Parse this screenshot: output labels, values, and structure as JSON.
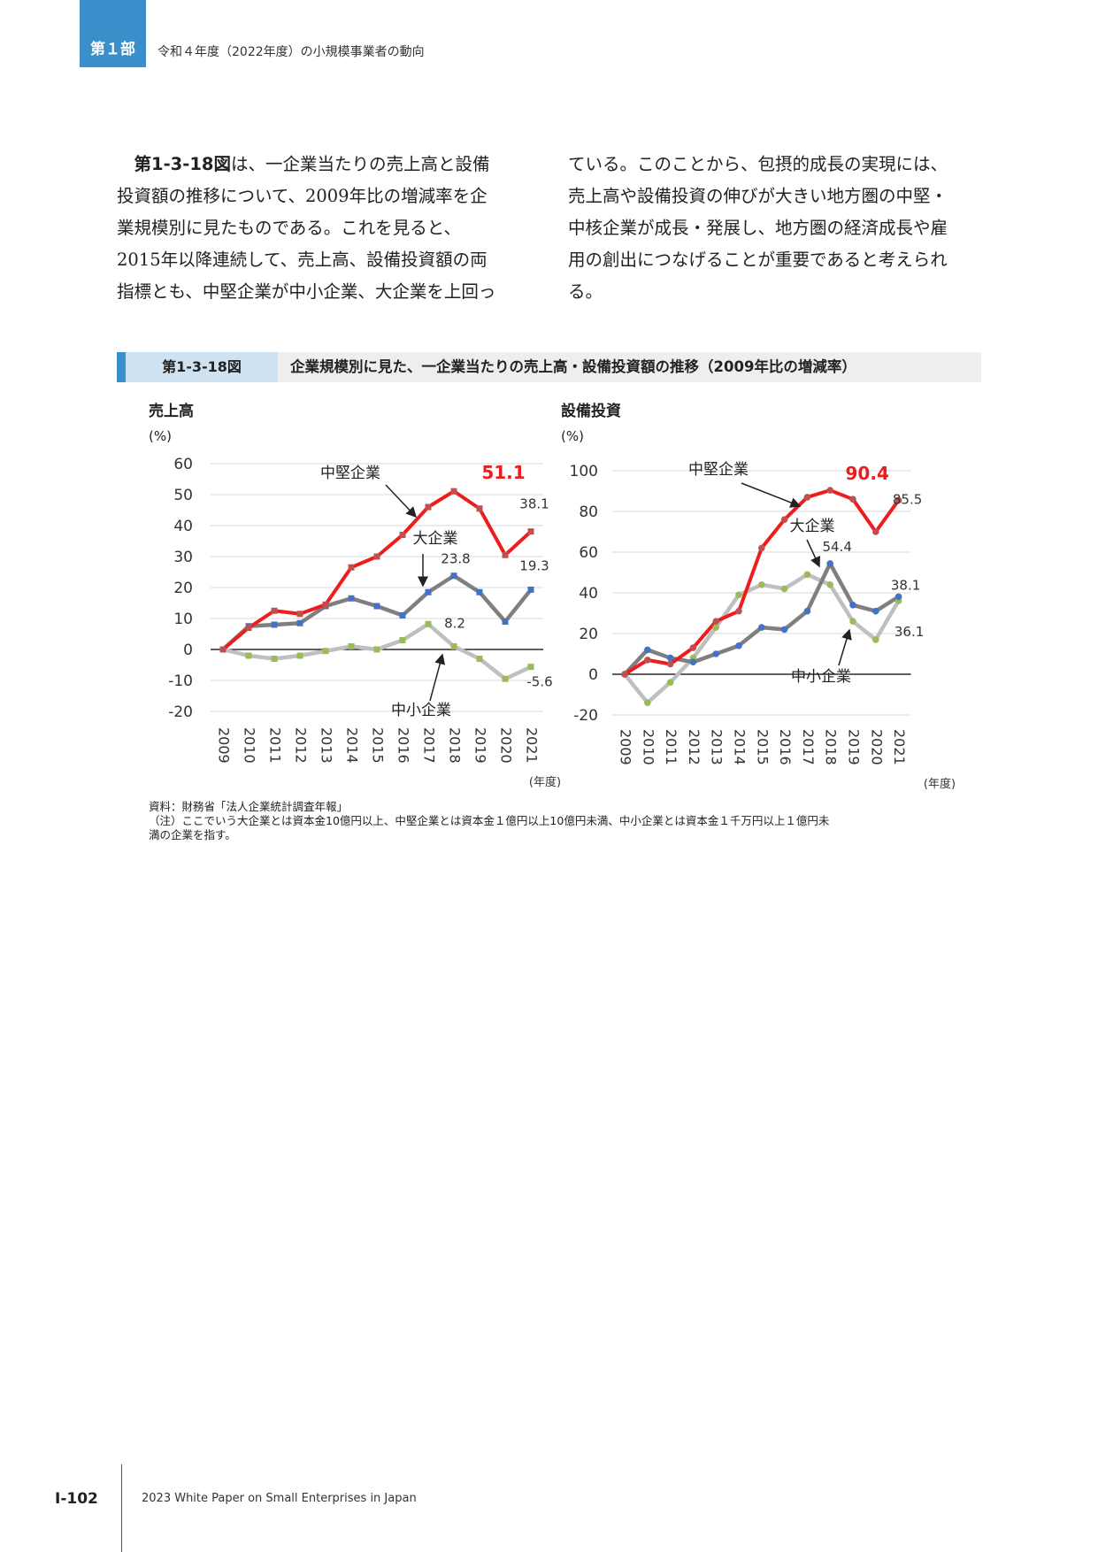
{
  "header": {
    "part_badge": "第１部",
    "title": "令和４年度（2022年度）の小規模事業者の動向"
  },
  "body": {
    "col1_lead": "第1-3-18図",
    "col1_lines": [
      "は、一企業当たりの売上高と設備",
      "投資額の推移について、2009年比の増減率を企",
      "業規模別に見たものである。これを見ると、",
      "2015年以降連続して、売上高、設備投資額の両",
      "指標とも、中堅企業が中小企業、大企業を上回っ"
    ],
    "col2_lines": [
      "ている。このことから、包摂的成長の実現には、",
      "売上高や設備投資の伸びが大きい地方圏の中堅・",
      "中核企業が成長・発展し、地方圏の経済成長や雇",
      "用の創出につなげることが重要であると考えられ",
      "る。"
    ]
  },
  "figure": {
    "number": "第1-3-18図",
    "title": "企業規模別に見た、一企業当たりの売上高・設備投資額の推移（2009年比の増減率）"
  },
  "chart_data": [
    {
      "type": "line",
      "title": "売上高",
      "ylabel": "(%)",
      "xlabel": "(年度)",
      "ylim": [
        -20,
        60
      ],
      "yticks": [
        -20,
        -10,
        0,
        10,
        20,
        30,
        40,
        50,
        60
      ],
      "x": [
        "2009",
        "2010",
        "2011",
        "2012",
        "2013",
        "2014",
        "2015",
        "2016",
        "2017",
        "2018",
        "2019",
        "2020",
        "2021"
      ],
      "series": [
        {
          "name": "中堅企業",
          "color": "#ee1c1c",
          "marker": "#c0504d",
          "values": [
            0,
            7,
            12.5,
            11.5,
            14.5,
            26.5,
            30,
            37,
            46,
            51.1,
            45.5,
            30.5,
            38.1
          ]
        },
        {
          "name": "大企業",
          "color": "#7f7f7f",
          "marker": "#4472c4",
          "values": [
            0,
            7.5,
            8,
            8.5,
            14,
            16.5,
            14,
            11,
            18.5,
            23.8,
            18.5,
            9,
            19.3
          ]
        },
        {
          "name": "中小企業",
          "color": "#bfbfbf",
          "marker": "#9bbb59",
          "values": [
            0,
            -2,
            -3,
            -2,
            -0.5,
            1,
            0,
            3,
            8.2,
            1,
            -3,
            -9.5,
            -5.6
          ]
        }
      ],
      "annotations": [
        "51.1",
        "38.1",
        "23.8",
        "19.3",
        "8.2",
        "-5.6"
      ]
    },
    {
      "type": "line",
      "title": "設備投資",
      "ylabel": "(%)",
      "xlabel": "(年度)",
      "ylim": [
        -20,
        100
      ],
      "yticks": [
        -20,
        0,
        20,
        40,
        60,
        80,
        100
      ],
      "x": [
        "2009",
        "2010",
        "2011",
        "2012",
        "2013",
        "2014",
        "2015",
        "2016",
        "2017",
        "2018",
        "2019",
        "2020",
        "2021"
      ],
      "series": [
        {
          "name": "中堅企業",
          "color": "#ee1c1c",
          "marker": "#c0504d",
          "values": [
            0,
            7,
            5,
            13,
            26,
            31,
            62,
            76,
            87,
            90.4,
            86,
            70,
            85.5
          ]
        },
        {
          "name": "大企業",
          "color": "#7f7f7f",
          "marker": "#4472c4",
          "values": [
            0,
            12,
            8,
            6,
            10,
            14,
            23,
            22,
            31,
            54.4,
            34,
            31,
            38.1
          ]
        },
        {
          "name": "中小企業",
          "color": "#bfbfbf",
          "marker": "#9bbb59",
          "values": [
            0,
            -14,
            -4,
            8,
            23,
            39,
            44,
            42,
            49,
            44,
            26,
            17,
            36.1
          ]
        }
      ],
      "annotations": [
        "90.4",
        "85.5",
        "54.4",
        "38.1",
        "36.1"
      ]
    }
  ],
  "notes": {
    "source": "資料：財務省「法人企業統計調査年報」",
    "note_line1": "（注）ここでいう大企業とは資本金10億円以上、中堅企業とは資本金１億円以上10億円未満、中小企業とは資本金１千万円以上１億円未",
    "note_line2": "満の企業を指す。"
  },
  "footer": {
    "page": "I-102",
    "text": "2023 White Paper on Small Enterprises in Japan"
  }
}
